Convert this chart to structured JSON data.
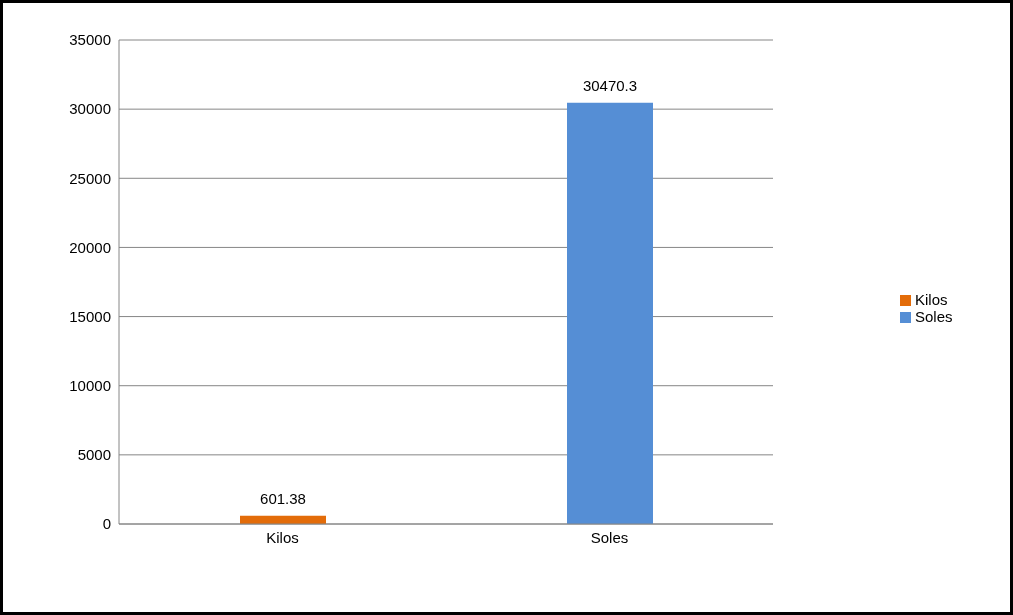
{
  "chart_data": {
    "type": "bar",
    "categories": [
      "Kilos",
      "Soles"
    ],
    "series": [
      {
        "name": "Kilos",
        "color": "#e36c09",
        "values": [
          601.38,
          null
        ]
      },
      {
        "name": "Soles",
        "color": "#558ed5",
        "values": [
          null,
          30470.3
        ]
      }
    ],
    "stacked": true,
    "ylim": [
      0,
      35000
    ],
    "yticks": [
      0,
      5000,
      10000,
      15000,
      20000,
      25000,
      30000,
      35000
    ],
    "grid": "y",
    "legend": "right",
    "data_labels": true
  }
}
